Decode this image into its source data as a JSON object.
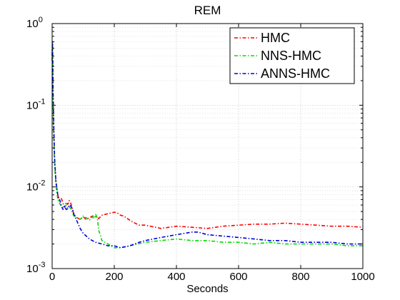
{
  "chart_data": {
    "type": "line",
    "title": "REM",
    "xlabel": "Seconds",
    "ylabel": "",
    "xlim": [
      0,
      1000
    ],
    "ylim": [
      0.001,
      1
    ],
    "yscale": "log",
    "grid": true,
    "legend_position": "top-right",
    "x_ticks": [
      0,
      200,
      400,
      600,
      800,
      1000
    ],
    "x_tick_labels": [
      "0",
      "200",
      "400",
      "600",
      "800",
      "1000"
    ],
    "y_ticks": [
      {
        "value": 0.001,
        "base": "10",
        "exp": "-3"
      },
      {
        "value": 0.01,
        "base": "10",
        "exp": "-2"
      },
      {
        "value": 0.1,
        "base": "10",
        "exp": "-1"
      },
      {
        "value": 1,
        "base": "10",
        "exp": "0"
      }
    ],
    "series": [
      {
        "name": "HMC",
        "color": "#ff0000",
        "x": [
          0,
          1,
          2,
          3,
          5,
          8,
          12,
          16,
          20,
          25,
          30,
          35,
          40,
          45,
          50,
          55,
          60,
          65,
          70,
          80,
          90,
          100,
          110,
          120,
          130,
          140,
          150,
          160,
          170,
          180,
          200,
          210,
          220,
          230,
          250,
          260,
          280,
          300,
          350,
          400,
          450,
          500,
          550,
          600,
          650,
          700,
          750,
          800,
          850,
          900,
          950,
          1000
        ],
        "y": [
          0.35,
          0.6,
          0.3,
          0.12,
          0.05,
          0.02,
          0.012,
          0.009,
          0.0075,
          0.0068,
          0.0072,
          0.0063,
          0.0056,
          0.0065,
          0.0061,
          0.0068,
          0.0063,
          0.0054,
          0.0046,
          0.0042,
          0.004,
          0.0043,
          0.004,
          0.0042,
          0.0044,
          0.0043,
          0.0041,
          0.0045,
          0.0046,
          0.0047,
          0.0049,
          0.0048,
          0.0045,
          0.0044,
          0.0039,
          0.0037,
          0.0034,
          0.0034,
          0.0031,
          0.0033,
          0.0032,
          0.0031,
          0.0033,
          0.0034,
          0.0035,
          0.0035,
          0.0036,
          0.0035,
          0.0034,
          0.0033,
          0.0033,
          0.0032
        ]
      },
      {
        "name": "NNS-HMC",
        "color": "#00dd00",
        "x": [
          0,
          1,
          2,
          3,
          5,
          8,
          12,
          16,
          20,
          25,
          30,
          35,
          40,
          45,
          50,
          55,
          60,
          65,
          70,
          80,
          90,
          100,
          110,
          120,
          130,
          135,
          140,
          145,
          150,
          155,
          160,
          180,
          200,
          220,
          250,
          300,
          350,
          400,
          450,
          500,
          550,
          600,
          650,
          700,
          750,
          800,
          850,
          900,
          950,
          1000
        ],
        "y": [
          0.35,
          0.6,
          0.3,
          0.1,
          0.04,
          0.018,
          0.011,
          0.008,
          0.0067,
          0.0062,
          0.0058,
          0.0057,
          0.0055,
          0.006,
          0.0055,
          0.0057,
          0.0054,
          0.0048,
          0.0044,
          0.0042,
          0.004,
          0.0044,
          0.0042,
          0.0039,
          0.0043,
          0.0041,
          0.0046,
          0.0042,
          0.0029,
          0.0026,
          0.0022,
          0.002,
          0.0018,
          0.0018,
          0.0019,
          0.0021,
          0.0022,
          0.0023,
          0.0022,
          0.0022,
          0.0021,
          0.0021,
          0.002,
          0.0021,
          0.002,
          0.002,
          0.002,
          0.002,
          0.0019,
          0.0019
        ]
      },
      {
        "name": "ANNS-HMC",
        "color": "#0000dd",
        "x": [
          0,
          1,
          2,
          3,
          5,
          8,
          12,
          16,
          20,
          25,
          30,
          35,
          40,
          45,
          50,
          55,
          60,
          65,
          70,
          80,
          90,
          100,
          110,
          120,
          140,
          160,
          180,
          200,
          220,
          250,
          280,
          300,
          350,
          400,
          450,
          470,
          500,
          550,
          600,
          650,
          700,
          750,
          800,
          850,
          900,
          950,
          1000
        ],
        "y": [
          0.4,
          0.6,
          0.35,
          0.15,
          0.06,
          0.022,
          0.012,
          0.009,
          0.0072,
          0.0068,
          0.0058,
          0.0053,
          0.0058,
          0.0053,
          0.0054,
          0.006,
          0.0058,
          0.0054,
          0.0046,
          0.0038,
          0.0031,
          0.0027,
          0.0025,
          0.0023,
          0.0021,
          0.002,
          0.0019,
          0.0019,
          0.0018,
          0.0019,
          0.0021,
          0.0022,
          0.0024,
          0.0026,
          0.0028,
          0.0028,
          0.0026,
          0.0025,
          0.0024,
          0.0023,
          0.0022,
          0.0022,
          0.0021,
          0.0021,
          0.0021,
          0.002,
          0.002
        ]
      }
    ]
  }
}
